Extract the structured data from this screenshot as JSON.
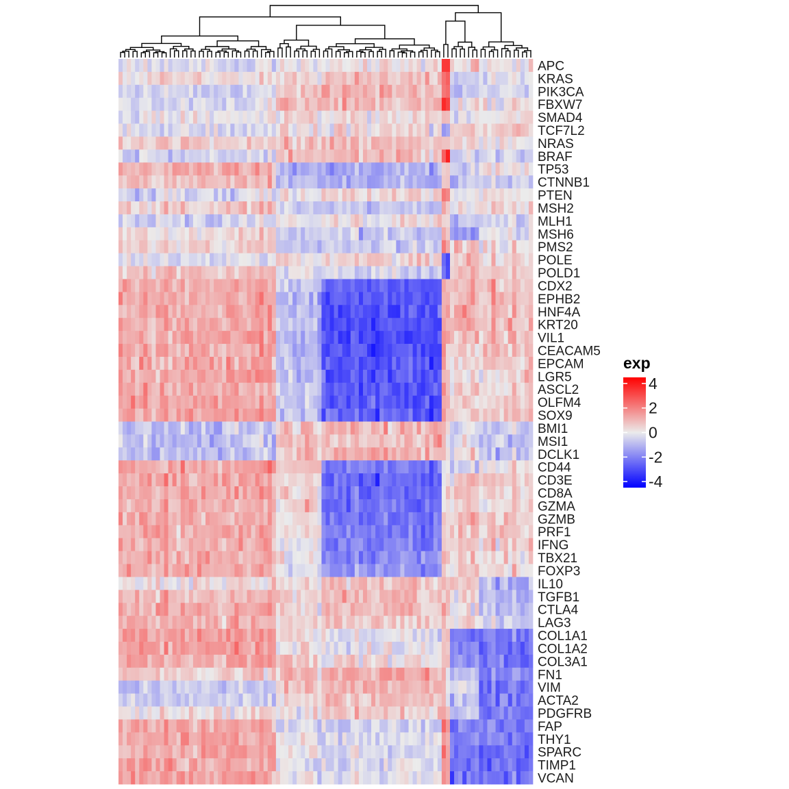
{
  "chart_data": {
    "type": "heatmap",
    "rows": [
      "APC",
      "KRAS",
      "PIK3CA",
      "FBXW7",
      "SMAD4",
      "TCF7L2",
      "NRAS",
      "BRAF",
      "TP53",
      "CTNNB1",
      "PTEN",
      "MSH2",
      "MLH1",
      "MSH6",
      "PMS2",
      "POLE",
      "POLD1",
      "CDX2",
      "EPHB2",
      "HNF4A",
      "KRT20",
      "VIL1",
      "CEACAM5",
      "EPCAM",
      "LGR5",
      "ASCL2",
      "OLFM4",
      "SOX9",
      "BMI1",
      "MSI1",
      "DCLK1",
      "CD44",
      "CD3E",
      "CD8A",
      "GZMA",
      "GZMB",
      "PRF1",
      "IFNG",
      "TBX21",
      "FOXP3",
      "IL10",
      "TGFB1",
      "CTLA4",
      "LAG3",
      "COL1A1",
      "COL1A2",
      "COL3A1",
      "FN1",
      "VIM",
      "ACTA2",
      "PDGFRB",
      "FAP",
      "THY1",
      "SPARC",
      "TIMP1",
      "VCAN"
    ],
    "n_columns": 100,
    "column_clusters": [
      {
        "width": 38,
        "profile": {
          "APC": -0.3,
          "KRAS": 0.3,
          "PIK3CA": -0.5,
          "FBXW7": -0.4,
          "SMAD4": 0.0,
          "TCF7L2": -0.3,
          "NRAS": 0.6,
          "BRAF": -0.5,
          "TP53": 1.2,
          "CTNNB1": 0.8,
          "PTEN": -0.4,
          "MSH2": 0.7,
          "MLH1": -0.5,
          "MSH6": 0.3,
          "PMS2": 0.5,
          "POLE": -0.3,
          "POLD1": 0.8,
          "CDX2": 1.2,
          "EPHB2": 1.3,
          "HNF4A": 1.3,
          "KRT20": 1.2,
          "VIL1": 1.3,
          "CEACAM5": 1.3,
          "EPCAM": 1.3,
          "LGR5": 1.4,
          "ASCL2": 1.2,
          "OLFM4": 1.4,
          "SOX9": 1.4,
          "BMI1": -0.8,
          "MSI1": -0.9,
          "DCLK1": -0.9,
          "CD44": 1.3,
          "CD3E": 1.3,
          "CD8A": 1.3,
          "GZMA": 1.2,
          "GZMB": 1.3,
          "PRF1": 1.3,
          "IFNG": 1.2,
          "TBX21": 1.2,
          "FOXP3": 1.2,
          "IL10": 0.2,
          "TGFB1": 1.0,
          "CTLA4": 1.1,
          "LAG3": 1.0,
          "COL1A1": 1.6,
          "COL1A2": 1.5,
          "COL3A1": 1.3,
          "FN1": 0.5,
          "VIM": -0.8,
          "ACTA2": -0.6,
          "PDGFRB": 0.2,
          "FAP": 1.3,
          "THY1": 1.3,
          "SPARC": 1.3,
          "TIMP1": 1.2,
          "VCAN": 1.4
        }
      },
      {
        "width": 11,
        "profile": {
          "APC": 0.2,
          "KRAS": 0.6,
          "PIK3CA": 0.9,
          "FBXW7": 1.1,
          "SMAD4": 0.3,
          "TCF7L2": 0.2,
          "NRAS": 0.8,
          "BRAF": 0.9,
          "TP53": -1.0,
          "CTNNB1": -0.8,
          "PTEN": 0.3,
          "MSH2": -0.6,
          "MLH1": 0.2,
          "MSH6": -0.5,
          "PMS2": -0.4,
          "POLE": 0.3,
          "POLD1": -0.3,
          "CDX2": -0.6,
          "EPHB2": -0.8,
          "HNF4A": -0.8,
          "KRT20": -0.8,
          "VIL1": -0.9,
          "CEACAM5": -0.9,
          "EPCAM": -0.8,
          "LGR5": -0.8,
          "ASCL2": -0.7,
          "OLFM4": -0.8,
          "SOX9": -0.7,
          "BMI1": 0.6,
          "MSI1": 0.8,
          "DCLK1": 1.0,
          "CD44": 0.8,
          "CD3E": 0.6,
          "CD8A": 0.5,
          "GZMA": 0.4,
          "GZMB": 0.3,
          "PRF1": 0.3,
          "IFNG": 0.1,
          "TBX21": 0.2,
          "FOXP3": -0.3,
          "IL10": 0.4,
          "TGFB1": 0.7,
          "CTLA4": 0.5,
          "LAG3": 0.4,
          "COL1A1": 0.4,
          "COL1A2": 0.3,
          "COL3A1": 0.7,
          "FN1": 1.0,
          "VIM": 0.6,
          "ACTA2": 0.5,
          "PDGFRB": 0.3,
          "FAP": -0.4,
          "THY1": 0.1,
          "SPARC": 0.0,
          "TIMP1": -0.2,
          "VCAN": 0.0
        }
      },
      {
        "width": 29,
        "profile": {
          "APC": 0.1,
          "KRAS": 0.8,
          "PIK3CA": 1.0,
          "FBXW7": 1.0,
          "SMAD4": 0.4,
          "TCF7L2": 0.3,
          "NRAS": 0.9,
          "BRAF": 0.8,
          "TP53": -1.2,
          "CTNNB1": -1.0,
          "PTEN": 0.4,
          "MSH2": -1.0,
          "MLH1": 0.2,
          "MSH6": -0.7,
          "PMS2": -0.6,
          "POLE": 0.4,
          "POLD1": -0.4,
          "CDX2": -2.8,
          "EPHB2": -2.9,
          "HNF4A": -3.0,
          "KRT20": -3.0,
          "VIL1": -3.0,
          "CEACAM5": -3.0,
          "EPCAM": -2.9,
          "LGR5": -2.8,
          "ASCL2": -2.8,
          "OLFM4": -2.8,
          "SOX9": -2.7,
          "BMI1": 0.9,
          "MSI1": 0.8,
          "DCLK1": 1.1,
          "CD44": -2.2,
          "CD3E": -2.4,
          "CD8A": -2.4,
          "GZMA": -2.4,
          "GZMB": -2.3,
          "PRF1": -2.2,
          "IFNG": -2.0,
          "TBX21": -1.9,
          "FOXP3": -1.6,
          "IL10": 0.9,
          "TGFB1": 1.0,
          "CTLA4": 0.8,
          "LAG3": 0.6,
          "COL1A1": -0.3,
          "COL1A2": -0.2,
          "COL3A1": 0.2,
          "FN1": 1.2,
          "VIM": 1.1,
          "ACTA2": 0.9,
          "PDGFRB": 0.6,
          "FAP": -0.6,
          "THY1": -0.3,
          "SPARC": -0.4,
          "TIMP1": -0.4,
          "VCAN": -0.3
        }
      },
      {
        "width": 2,
        "profile": {
          "APC": 3.0,
          "KRAS": 2.2,
          "PIK3CA": 2.5,
          "FBXW7": 3.2,
          "SMAD4": 1.0,
          "TCF7L2": -1.2,
          "NRAS": 0.8,
          "BRAF": 3.5,
          "TP53": 0.5,
          "CTNNB1": 0.6,
          "PTEN": 2.0,
          "MSH2": 0.8,
          "MLH1": 0.5,
          "MSH6": 0.8,
          "PMS2": 1.8,
          "POLE": -2.5,
          "POLD1": -2.5,
          "CDX2": 1.0,
          "EPHB2": 1.0,
          "HNF4A": 1.0,
          "KRT20": 1.0,
          "VIL1": 1.0,
          "CEACAM5": 1.0,
          "EPCAM": 1.0,
          "LGR5": 1.0,
          "ASCL2": 1.0,
          "OLFM4": 1.0,
          "SOX9": 1.0,
          "BMI1": 0.5,
          "MSI1": 0.5,
          "DCLK1": 0.5,
          "CD44": 0.5,
          "CD3E": 0.5,
          "CD8A": 0.5,
          "GZMA": 0.5,
          "GZMB": 0.5,
          "PRF1": 0.5,
          "IFNG": 0.5,
          "TBX21": 0.5,
          "FOXP3": 0.5,
          "IL10": 1.2,
          "TGFB1": 1.0,
          "CTLA4": 1.0,
          "LAG3": 1.0,
          "COL1A1": 0.8,
          "COL1A2": 0.8,
          "COL3A1": 0.8,
          "FN1": 0.8,
          "VIM": 0.8,
          "ACTA2": 0.8,
          "PDGFRB": 1.0,
          "FAP": 2.2,
          "THY1": 1.5,
          "SPARC": 1.5,
          "TIMP1": 1.5,
          "VCAN": 1.5
        }
      },
      {
        "width": 7,
        "profile": {
          "APC": 0.6,
          "KRAS": -0.6,
          "PIK3CA": -0.8,
          "FBXW7": -0.3,
          "SMAD4": -0.5,
          "TCF7L2": 0.6,
          "NRAS": 0.4,
          "BRAF": -0.5,
          "TP53": -0.4,
          "CTNNB1": -0.8,
          "PTEN": -0.2,
          "MSH2": 0.2,
          "MLH1": -0.8,
          "MSH6": -1.2,
          "PMS2": 0.5,
          "POLE": 0.6,
          "POLD1": 0.8,
          "CDX2": 0.9,
          "EPHB2": 0.8,
          "HNF4A": 1.1,
          "KRT20": 1.0,
          "VIL1": 0.7,
          "CEACAM5": 0.6,
          "EPCAM": 0.5,
          "LGR5": 0.2,
          "ASCL2": 0.3,
          "OLFM4": 0.3,
          "SOX9": 0.6,
          "BMI1": -0.3,
          "MSI1": -0.3,
          "DCLK1": 0.4,
          "CD44": -0.8,
          "CD3E": 0.6,
          "CD8A": 0.9,
          "GZMA": 0.5,
          "GZMB": 0.7,
          "PRF1": 0.7,
          "IFNG": 0.7,
          "TBX21": 0.5,
          "FOXP3": 0.6,
          "IL10": 0.5,
          "TGFB1": 0.1,
          "CTLA4": 0.2,
          "LAG3": 0.2,
          "COL1A1": -2.0,
          "COL1A2": -2.0,
          "COL3A1": -1.7,
          "FN1": -0.9,
          "VIM": -0.5,
          "ACTA2": -0.5,
          "PDGFRB": -0.8,
          "FAP": -2.3,
          "THY1": -2.2,
          "SPARC": -2.2,
          "TIMP1": -2.3,
          "VCAN": -2.4
        }
      },
      {
        "width": 13,
        "profile": {
          "APC": 0.0,
          "KRAS": -0.2,
          "PIK3CA": -0.2,
          "FBXW7": 0.0,
          "SMAD4": 0.1,
          "TCF7L2": 0.3,
          "NRAS": -0.1,
          "BRAF": -0.3,
          "TP53": 0.0,
          "CTNNB1": -0.5,
          "PTEN": 0.1,
          "MSH2": 0.1,
          "MLH1": -0.5,
          "MSH6": -0.4,
          "PMS2": 0.1,
          "POLE": 0.3,
          "POLD1": 0.4,
          "CDX2": 0.8,
          "EPHB2": 0.8,
          "HNF4A": 0.9,
          "KRT20": 0.9,
          "VIL1": 0.8,
          "CEACAM5": 0.6,
          "EPCAM": 0.6,
          "LGR5": 0.3,
          "ASCL2": 0.4,
          "OLFM4": 0.4,
          "SOX9": 0.8,
          "BMI1": -0.6,
          "MSI1": -0.9,
          "DCLK1": -1.0,
          "CD44": 0.2,
          "CD3E": 0.6,
          "CD8A": 0.6,
          "GZMA": 0.4,
          "GZMB": 0.6,
          "PRF1": 0.5,
          "IFNG": 0.4,
          "TBX21": 0.4,
          "FOXP3": 0.2,
          "IL10": -1.1,
          "TGFB1": -0.9,
          "CTLA4": -0.9,
          "LAG3": -0.6,
          "COL1A1": -2.2,
          "COL1A2": -2.3,
          "COL3A1": -2.3,
          "FN1": -1.9,
          "VIM": -2.3,
          "ACTA2": -2.2,
          "PDGFRB": -2.2,
          "FAP": -2.2,
          "THY1": -2.3,
          "SPARC": -2.4,
          "TIMP1": -2.4,
          "VCAN": -2.4
        }
      }
    ],
    "value_range": [
      -4.5,
      4.5
    ],
    "colors": {
      "low": "#0000ff",
      "mid": "#ebebeb",
      "high": "#ff0000"
    },
    "legend": {
      "title": "exp",
      "ticks": [
        4,
        2,
        0,
        -2,
        -4
      ],
      "position": "right"
    },
    "column_dendrogram": true,
    "row_labels_position": "right"
  }
}
